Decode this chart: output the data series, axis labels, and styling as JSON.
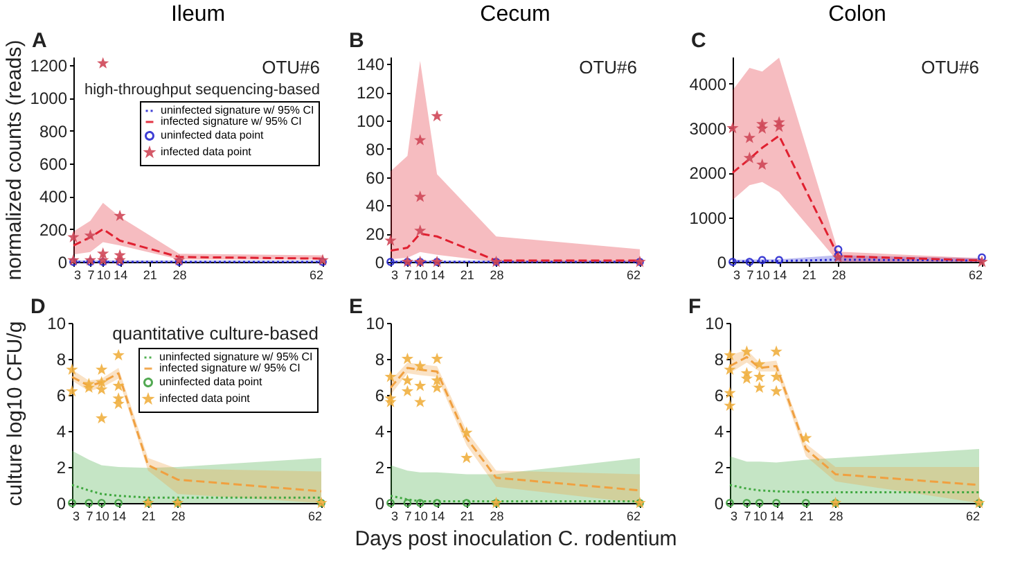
{
  "chart_data": [
    {
      "type": "line",
      "title": "Ileum",
      "ylabel": "normalized counts (reads)",
      "annotations": [
        "A",
        "OTU#6",
        "high-throughput sequencing-based"
      ],
      "xlim": [
        3,
        62
      ],
      "xticks": [
        3,
        7,
        10,
        14,
        21,
        28,
        62
      ],
      "ylim": [
        0,
        1250
      ],
      "yticks": [
        0,
        200,
        400,
        600,
        800,
        1000,
        1200
      ],
      "legend": "top right",
      "series": [
        {
          "name": "uninfected signature w/ 95% CI",
          "type": "line",
          "line_style": "dotted",
          "color": "#2a2ad0",
          "x": [
            3,
            7,
            10,
            14,
            28,
            62
          ],
          "values": [
            0,
            0,
            0,
            0,
            0,
            0
          ],
          "lower": [
            0,
            0,
            0,
            0,
            0,
            0
          ],
          "upper": [
            10,
            10,
            10,
            10,
            10,
            10
          ]
        },
        {
          "name": "infected signature w/ 95% CI",
          "type": "line",
          "line_style": "dashed",
          "color": "#e02030",
          "x": [
            3,
            7,
            10,
            14,
            28,
            62
          ],
          "values": [
            100,
            150,
            200,
            130,
            30,
            20
          ],
          "lower": [
            45,
            60,
            120,
            100,
            15,
            15
          ],
          "upper": [
            185,
            250,
            360,
            275,
            50,
            40
          ]
        },
        {
          "name": "uninfected data point",
          "type": "scatter",
          "marker": "circle",
          "color": "#2a2ad0",
          "x": [
            3,
            7,
            10,
            14,
            28,
            62
          ],
          "values": [
            0,
            0,
            0,
            0,
            0,
            0
          ]
        },
        {
          "name": "infected data point",
          "type": "scatter",
          "marker": "star",
          "color": "#d04858",
          "x": [
            3,
            3,
            7,
            7,
            10,
            10,
            10,
            14,
            14,
            14,
            28,
            62
          ],
          "values": [
            150,
            10,
            160,
            10,
            1210,
            50,
            10,
            280,
            40,
            10,
            10,
            10
          ]
        }
      ]
    },
    {
      "type": "line",
      "title": "Cecum",
      "annotations": [
        "B",
        "OTU#6"
      ],
      "xlim": [
        3,
        62
      ],
      "xticks": [
        3,
        7,
        10,
        14,
        21,
        28,
        62
      ],
      "ylim": [
        0,
        145
      ],
      "yticks": [
        0,
        20,
        40,
        60,
        80,
        100,
        120,
        140
      ],
      "series": [
        {
          "type": "line",
          "line_style": "dotted",
          "color": "#2a2ad0",
          "x": [
            3,
            7,
            10,
            14,
            28,
            62
          ],
          "values": [
            0,
            0,
            0,
            0,
            0,
            0
          ],
          "lower": [
            0,
            0,
            0,
            0,
            0,
            0
          ],
          "upper": [
            1,
            1,
            1,
            1,
            1,
            1
          ]
        },
        {
          "type": "line",
          "line_style": "dashed",
          "color": "#e02030",
          "x": [
            3,
            7,
            10,
            14,
            28,
            62
          ],
          "values": [
            8,
            10,
            20,
            18,
            1,
            1
          ],
          "lower": [
            2,
            3,
            7,
            5,
            0,
            0
          ],
          "upper": [
            64,
            75,
            142,
            62,
            18,
            9
          ]
        },
        {
          "type": "scatter",
          "marker": "circle",
          "color": "#2a2ad0",
          "x": [
            3,
            7,
            10,
            14,
            28,
            62
          ],
          "values": [
            0,
            0,
            0,
            0,
            0,
            0
          ]
        },
        {
          "type": "scatter",
          "marker": "star",
          "color": "#d04858",
          "x": [
            3,
            7,
            10,
            10,
            10,
            10,
            14,
            14,
            28,
            62
          ],
          "values": [
            15,
            0,
            86,
            46,
            22,
            0,
            103,
            0,
            0,
            0
          ]
        }
      ]
    },
    {
      "type": "line",
      "title": "Colon",
      "annotations": [
        "C",
        "OTU#6"
      ],
      "xlim": [
        3,
        62
      ],
      "xticks": [
        3,
        7,
        10,
        14,
        21,
        28,
        62
      ],
      "ylim": [
        0,
        4600
      ],
      "yticks": [
        0,
        1000,
        2000,
        3000,
        4000
      ],
      "series": [
        {
          "type": "line",
          "line_style": "dotted",
          "color": "#2a2ad0",
          "x": [
            3,
            7,
            10,
            14,
            28,
            62
          ],
          "values": [
            10,
            10,
            20,
            20,
            50,
            30
          ],
          "lower": [
            0,
            0,
            0,
            0,
            0,
            0
          ],
          "upper": [
            50,
            50,
            60,
            60,
            150,
            80
          ]
        },
        {
          "type": "line",
          "line_style": "dashed",
          "color": "#e02030",
          "x": [
            3,
            7,
            10,
            14,
            28,
            62
          ],
          "values": [
            2000,
            2310,
            2560,
            2830,
            130,
            30
          ],
          "lower": [
            1390,
            1720,
            1790,
            1570,
            0,
            0
          ],
          "upper": [
            3850,
            4350,
            4270,
            4580,
            230,
            80
          ]
        },
        {
          "type": "scatter",
          "marker": "circle",
          "color": "#2a2ad0",
          "x": [
            3,
            7,
            10,
            14,
            28,
            28,
            62
          ],
          "values": [
            0,
            0,
            40,
            40,
            280,
            150,
            100
          ]
        },
        {
          "type": "scatter",
          "marker": "star",
          "color": "#d04858",
          "x": [
            3,
            7,
            7,
            10,
            10,
            10,
            14,
            14,
            28,
            62
          ],
          "values": [
            3000,
            2780,
            2330,
            3090,
            2990,
            2180,
            3130,
            3030,
            100,
            0
          ]
        }
      ]
    },
    {
      "type": "line",
      "ylabel": "culture log10 CFU/g",
      "annotations": [
        "D",
        "quantitative culture-based"
      ],
      "xlim": [
        3,
        62
      ],
      "xticks": [
        3,
        7,
        10,
        14,
        21,
        28,
        62
      ],
      "ylim": [
        0,
        10
      ],
      "yticks": [
        0,
        2,
        4,
        6,
        8,
        10
      ],
      "legend": "top right",
      "series": [
        {
          "name": "uninfected signature w/ 95% CI",
          "type": "line",
          "line_style": "dotted",
          "color": "#40a840",
          "x": [
            3,
            7,
            10,
            14,
            21,
            28,
            62
          ],
          "values": [
            1.0,
            0.7,
            0.5,
            0.4,
            0.3,
            0.3,
            0.3
          ],
          "lower": [
            0,
            0,
            0,
            0,
            0,
            0,
            0
          ],
          "upper": [
            2.9,
            2.4,
            2.1,
            2.0,
            1.95,
            2.0,
            2.5
          ]
        },
        {
          "name": "infected signature w/ 95% CI",
          "type": "line",
          "line_style": "dashed",
          "color": "#f0a040",
          "x": [
            3,
            7,
            10,
            14,
            21,
            28,
            62
          ],
          "values": [
            7.0,
            6.5,
            6.7,
            7.2,
            2.1,
            1.3,
            0.65
          ],
          "lower": [
            6.8,
            6.2,
            6.4,
            6.9,
            1.8,
            0.5,
            0
          ],
          "upper": [
            7.4,
            6.8,
            6.9,
            7.5,
            2.5,
            1.9,
            1.75
          ]
        },
        {
          "name": "uninfected data point",
          "type": "scatter",
          "marker": "circle",
          "color": "#40a040",
          "x": [
            3,
            7,
            10,
            14,
            21,
            28,
            62
          ],
          "values": [
            0,
            0,
            0,
            0,
            0,
            0,
            0
          ]
        },
        {
          "name": "infected data point",
          "type": "scatter",
          "marker": "star",
          "color": "#f0b040",
          "x": [
            3,
            3,
            7,
            7,
            10,
            10,
            10,
            10,
            14,
            14,
            14,
            14,
            21,
            28,
            62
          ],
          "values": [
            7.4,
            6.2,
            6.4,
            6.6,
            7.4,
            6.7,
            6.3,
            4.7,
            8.2,
            6.5,
            5.8,
            5.5,
            0,
            0,
            0
          ]
        }
      ]
    },
    {
      "type": "line",
      "xlabel": "Days post inoculation C. rodentium",
      "annotations": [
        "E"
      ],
      "xlim": [
        3,
        62
      ],
      "xticks": [
        3,
        7,
        10,
        14,
        21,
        28,
        62
      ],
      "ylim": [
        0,
        10
      ],
      "yticks": [
        0,
        2,
        4,
        6,
        8,
        10
      ],
      "series": [
        {
          "type": "line",
          "line_style": "dotted",
          "color": "#40a840",
          "x": [
            3,
            7,
            10,
            14,
            21,
            28,
            62
          ],
          "values": [
            0.4,
            0.2,
            0.1,
            0.1,
            0.1,
            0.1,
            0.1
          ],
          "lower": [
            0,
            0,
            0,
            0,
            0,
            0,
            0
          ],
          "upper": [
            2.1,
            1.8,
            1.7,
            1.7,
            1.6,
            1.6,
            2.5
          ]
        },
        {
          "type": "line",
          "line_style": "dashed",
          "color": "#f0a040",
          "x": [
            3,
            7,
            10,
            14,
            21,
            28,
            62
          ],
          "values": [
            6.4,
            7.5,
            7.4,
            7.3,
            3.6,
            1.4,
            0.7
          ],
          "lower": [
            6.0,
            7.2,
            7.1,
            7.0,
            3.2,
            0.9,
            0
          ],
          "upper": [
            6.8,
            7.8,
            7.7,
            7.6,
            4.0,
            1.8,
            1.6
          ]
        },
        {
          "type": "scatter",
          "marker": "circle",
          "color": "#40a040",
          "x": [
            3,
            7,
            10,
            14,
            21,
            28,
            62
          ],
          "values": [
            0,
            0,
            0,
            0,
            0,
            0,
            0
          ]
        },
        {
          "type": "scatter",
          "marker": "star",
          "color": "#f0b040",
          "x": [
            3,
            3,
            3,
            7,
            7,
            7,
            10,
            10,
            10,
            14,
            14,
            14,
            21,
            21,
            28,
            62
          ],
          "values": [
            7.0,
            5.8,
            5.6,
            8.0,
            6.8,
            6.2,
            7.6,
            6.5,
            5.6,
            8.0,
            6.8,
            6.4,
            3.9,
            2.5,
            0,
            0
          ]
        }
      ]
    },
    {
      "type": "line",
      "annotations": [
        "F"
      ],
      "xlim": [
        3,
        62
      ],
      "xticks": [
        3,
        7,
        10,
        14,
        21,
        28,
        62
      ],
      "ylim": [
        0,
        10
      ],
      "yticks": [
        0,
        2,
        4,
        6,
        8,
        10
      ],
      "series": [
        {
          "type": "line",
          "line_style": "dotted",
          "color": "#40a840",
          "x": [
            3,
            7,
            10,
            14,
            21,
            28,
            62
          ],
          "values": [
            1.0,
            0.8,
            0.7,
            0.65,
            0.6,
            0.6,
            0.6
          ],
          "lower": [
            0,
            0,
            0,
            0,
            0,
            0,
            0
          ],
          "upper": [
            2.6,
            2.3,
            2.3,
            2.25,
            2.4,
            2.5,
            3.0
          ]
        },
        {
          "type": "line",
          "line_style": "dashed",
          "color": "#f0a040",
          "x": [
            3,
            7,
            10,
            14,
            21,
            28,
            62
          ],
          "values": [
            7.6,
            8.1,
            7.5,
            7.6,
            3.0,
            1.6,
            1.0
          ],
          "lower": [
            7.2,
            7.8,
            7.3,
            7.3,
            2.6,
            1.2,
            0
          ],
          "upper": [
            8.2,
            8.5,
            7.8,
            7.9,
            3.3,
            2.0,
            2.0
          ]
        },
        {
          "type": "scatter",
          "marker": "circle",
          "color": "#40a040",
          "x": [
            3,
            7,
            10,
            14,
            21,
            28,
            62
          ],
          "values": [
            0,
            0,
            0,
            0,
            0,
            0,
            0
          ]
        },
        {
          "type": "scatter",
          "marker": "star",
          "color": "#f0b040",
          "x": [
            3,
            3,
            3,
            3,
            7,
            7,
            7,
            10,
            10,
            10,
            14,
            14,
            14,
            21,
            28,
            62
          ],
          "values": [
            8.2,
            7.4,
            6.1,
            5.4,
            8.4,
            7.2,
            6.9,
            7.7,
            7.0,
            6.4,
            8.4,
            7.0,
            6.2,
            3.6,
            0,
            0
          ]
        }
      ]
    }
  ]
}
